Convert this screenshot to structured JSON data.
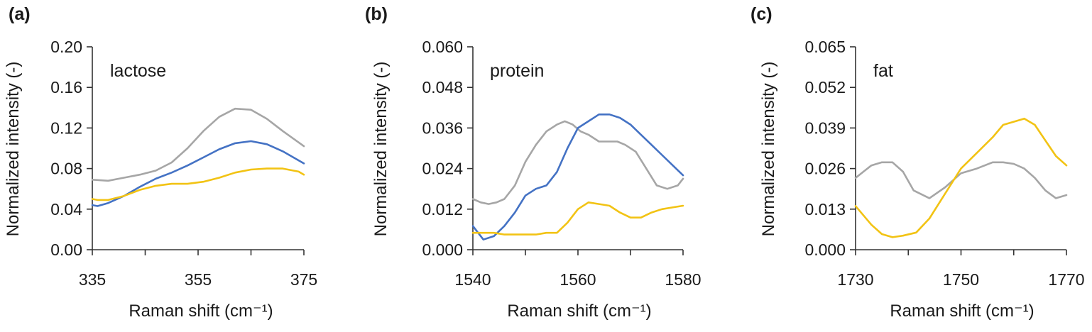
{
  "chart_data": [
    {
      "type": "line",
      "panel_label": "(a)",
      "inset_label": "lactose",
      "xlabel": "Raman shift (cm⁻¹)",
      "ylabel": "Normalized intensity (-)",
      "xlim": [
        335,
        375
      ],
      "ylim": [
        0.0,
        0.2
      ],
      "xticks": [
        "335",
        "355",
        "375"
      ],
      "yticks": [
        "0.00",
        "0.04",
        "0.08",
        "0.12",
        "0.16",
        "0.20"
      ],
      "grid": false,
      "series": [
        {
          "color": "#a6a6a6",
          "x": [
            335,
            338,
            341,
            344,
            347,
            350,
            353,
            356,
            359,
            362,
            365,
            368,
            371,
            375
          ],
          "y": [
            0.069,
            0.068,
            0.071,
            0.074,
            0.078,
            0.086,
            0.1,
            0.117,
            0.131,
            0.139,
            0.138,
            0.129,
            0.117,
            0.102
          ]
        },
        {
          "color": "#4472c4",
          "x": [
            335,
            336,
            338,
            341,
            344,
            347,
            350,
            353,
            356,
            359,
            362,
            365,
            368,
            371,
            375
          ],
          "y": [
            0.044,
            0.043,
            0.046,
            0.053,
            0.062,
            0.07,
            0.076,
            0.083,
            0.091,
            0.099,
            0.105,
            0.107,
            0.104,
            0.097,
            0.085
          ]
        },
        {
          "color": "#f2c314",
          "x": [
            335,
            336,
            338,
            341,
            344,
            347,
            350,
            353,
            356,
            359,
            362,
            365,
            368,
            371,
            374,
            375
          ],
          "y": [
            0.05,
            0.049,
            0.049,
            0.053,
            0.059,
            0.063,
            0.065,
            0.065,
            0.067,
            0.071,
            0.076,
            0.079,
            0.08,
            0.08,
            0.077,
            0.074
          ]
        }
      ]
    },
    {
      "type": "line",
      "panel_label": "(b)",
      "inset_label": "protein",
      "xlabel": "Raman shift (cm⁻¹)",
      "ylabel": "Normalized intensity (-)",
      "xlim": [
        1540,
        1580
      ],
      "ylim": [
        0.0,
        0.06
      ],
      "xticks": [
        "1540",
        "1560",
        "1580"
      ],
      "yticks": [
        "0.000",
        "0.012",
        "0.024",
        "0.036",
        "0.048",
        "0.060"
      ],
      "grid": false,
      "series": [
        {
          "color": "#a6a6a6",
          "x": [
            1540,
            1541.5,
            1543,
            1544.5,
            1546,
            1548,
            1550,
            1552,
            1554,
            1556,
            1557.5,
            1559,
            1560.5,
            1562,
            1564,
            1566,
            1567.5,
            1569,
            1571,
            1573,
            1575,
            1577,
            1579,
            1580
          ],
          "y": [
            0.015,
            0.014,
            0.0135,
            0.014,
            0.015,
            0.019,
            0.026,
            0.031,
            0.035,
            0.037,
            0.038,
            0.037,
            0.035,
            0.034,
            0.032,
            0.032,
            0.032,
            0.031,
            0.029,
            0.024,
            0.019,
            0.018,
            0.019,
            0.021
          ]
        },
        {
          "color": "#4472c4",
          "x": [
            1540,
            1541,
            1542,
            1544,
            1546,
            1548,
            1550,
            1552,
            1554,
            1556,
            1558,
            1560,
            1562,
            1564,
            1566,
            1568,
            1570,
            1572,
            1574,
            1576,
            1578,
            1580
          ],
          "y": [
            0.007,
            0.005,
            0.003,
            0.004,
            0.007,
            0.011,
            0.016,
            0.018,
            0.019,
            0.023,
            0.03,
            0.036,
            0.038,
            0.04,
            0.04,
            0.039,
            0.037,
            0.034,
            0.031,
            0.028,
            0.025,
            0.022
          ]
        },
        {
          "color": "#f2c314",
          "x": [
            1540,
            1542,
            1544,
            1546,
            1548,
            1550,
            1552,
            1554,
            1556,
            1558,
            1560,
            1562,
            1564,
            1566,
            1568,
            1570,
            1572,
            1574,
            1576,
            1578,
            1580
          ],
          "y": [
            0.005,
            0.005,
            0.005,
            0.0045,
            0.0045,
            0.0045,
            0.0045,
            0.005,
            0.005,
            0.008,
            0.012,
            0.014,
            0.0135,
            0.013,
            0.011,
            0.0095,
            0.0095,
            0.011,
            0.012,
            0.0125,
            0.013
          ]
        }
      ]
    },
    {
      "type": "line",
      "panel_label": "(c)",
      "inset_label": "fat",
      "xlabel": "Raman shift (cm⁻¹)",
      "ylabel": "Normalized intensity (-)",
      "xlim": [
        1730,
        1770
      ],
      "ylim": [
        0.0,
        0.065
      ],
      "xticks": [
        "1730",
        "1750",
        "1770"
      ],
      "yticks": [
        "0.000",
        "0.013",
        "0.026",
        "0.039",
        "0.052",
        "0.065"
      ],
      "grid": false,
      "series": [
        {
          "color": "#a6a6a6",
          "x": [
            1730,
            1731.5,
            1733,
            1735,
            1737,
            1739,
            1741,
            1744,
            1747,
            1750,
            1753,
            1756,
            1758,
            1760,
            1762,
            1764,
            1766,
            1768,
            1770
          ],
          "y": [
            0.023,
            0.025,
            0.027,
            0.028,
            0.028,
            0.025,
            0.019,
            0.0165,
            0.02,
            0.0245,
            0.026,
            0.028,
            0.028,
            0.0275,
            0.026,
            0.023,
            0.019,
            0.0165,
            0.0175
          ]
        },
        {
          "color": "#f2c314",
          "x": [
            1730,
            1731.5,
            1733,
            1735,
            1737,
            1739,
            1741.5,
            1744,
            1747,
            1750,
            1753,
            1756,
            1758,
            1760,
            1762,
            1764,
            1766,
            1768,
            1770
          ],
          "y": [
            0.014,
            0.011,
            0.008,
            0.005,
            0.004,
            0.0045,
            0.0055,
            0.01,
            0.018,
            0.026,
            0.031,
            0.036,
            0.04,
            0.041,
            0.042,
            0.04,
            0.035,
            0.03,
            0.027
          ]
        }
      ]
    }
  ]
}
